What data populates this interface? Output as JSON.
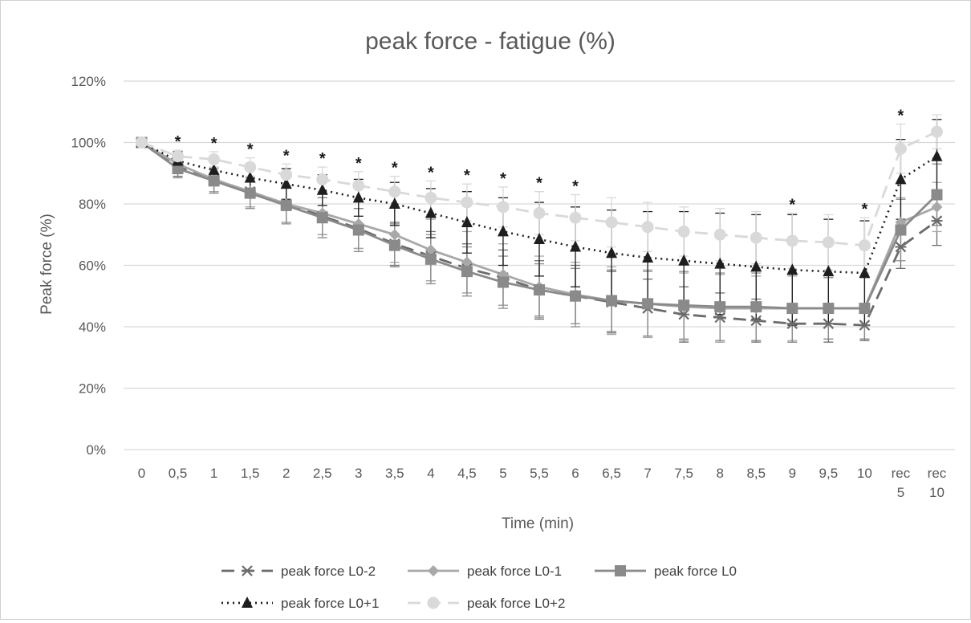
{
  "chart_data": {
    "type": "line",
    "title": "peak force - fatigue (%)",
    "xlabel": "Time (min)",
    "ylabel": "Peak force (%)",
    "ylim": [
      0,
      120
    ],
    "grid": true,
    "legend_position": "bottom",
    "categories": [
      "0",
      "0,5",
      "1",
      "1,5",
      "2",
      "2,5",
      "3",
      "3,5",
      "4",
      "4,5",
      "5",
      "5,5",
      "6",
      "6,5",
      "7",
      "7,5",
      "8",
      "8,5",
      "9",
      "9,5",
      "10",
      "rec\n5",
      "rec\n10"
    ],
    "yticks": [
      "0%",
      "20%",
      "40%",
      "60%",
      "80%",
      "100%",
      "120%"
    ],
    "significance_marker": "*",
    "significance_categories": [
      "0,5",
      "1",
      "1,5",
      "2",
      "2,5",
      "3",
      "3,5",
      "4",
      "4,5",
      "5",
      "5,5",
      "6",
      "9",
      "10",
      "rec\n5"
    ],
    "series": [
      {
        "name": "peak force L0-2",
        "color": "#6b6b6b",
        "marker": "x",
        "line": "dashed",
        "values": [
          100,
          92,
          88,
          84,
          80,
          76,
          72,
          67,
          63,
          59,
          56,
          52,
          50,
          48,
          46,
          44,
          43,
          42,
          41,
          41,
          40.5,
          66,
          74.5
        ],
        "errors": [
          0,
          3,
          4,
          5,
          6,
          6,
          6.5,
          7,
          8,
          8,
          9,
          9.5,
          10,
          10,
          9.5,
          9,
          8,
          7,
          6,
          6,
          5,
          7,
          8
        ]
      },
      {
        "name": "peak force L0-1",
        "color": "#a8a8a8",
        "marker": "diamond",
        "line": "solid",
        "values": [
          100,
          93,
          88,
          84,
          80,
          77,
          73.5,
          70,
          65,
          61,
          57,
          53,
          50.5,
          48.5,
          47.5,
          46.5,
          46,
          46,
          46,
          46,
          46,
          74,
          79
        ],
        "errors": [
          0,
          3,
          4,
          5,
          6,
          7,
          8,
          9,
          10,
          10,
          10,
          10,
          10.5,
          11,
          11,
          11,
          11,
          10.5,
          10.5,
          10,
          10,
          8,
          8
        ]
      },
      {
        "name": "peak force L0",
        "color": "#8a8a8a",
        "marker": "square",
        "line": "solid",
        "values": [
          100,
          91.5,
          87.5,
          83.5,
          79.5,
          75.5,
          71.5,
          66.5,
          62,
          58,
          54.5,
          52,
          50,
          48.5,
          47.5,
          47,
          46.5,
          46.5,
          46,
          46,
          46,
          71.5,
          83
        ],
        "errors": [
          0,
          3,
          4,
          5,
          6,
          6.5,
          7,
          7,
          8,
          8,
          8.5,
          8.5,
          9,
          10,
          10.5,
          11,
          11,
          11,
          11,
          10,
          10,
          10,
          10
        ]
      },
      {
        "name": "peak force L0+1",
        "color": "#1e1e1e",
        "marker": "triangle",
        "line": "dotted",
        "values": [
          100,
          94,
          91,
          88.5,
          86.5,
          84.5,
          82,
          80,
          77,
          74,
          71,
          68.5,
          66,
          64,
          62.5,
          61.5,
          60.5,
          59.5,
          58.5,
          58,
          57.5,
          88,
          95.5
        ],
        "errors": [
          0,
          3,
          4,
          4.5,
          5,
          5,
          6,
          7,
          8,
          10,
          11,
          12,
          13,
          14,
          15,
          16,
          16.5,
          17,
          18,
          17,
          17,
          13,
          12
        ]
      },
      {
        "name": "peak force L0+2",
        "color": "#d9d9d9",
        "marker": "circle",
        "line": "dashed",
        "values": [
          100,
          95.5,
          94.5,
          92,
          89.5,
          88,
          86,
          84,
          82,
          80.5,
          79,
          77,
          75.5,
          74,
          72.5,
          71,
          70,
          69,
          68,
          67.5,
          66.5,
          98,
          103.5
        ],
        "errors": [
          0,
          2,
          2.5,
          3,
          3.5,
          4,
          4.5,
          5,
          5.5,
          6,
          6.5,
          7,
          7.5,
          8,
          8,
          8,
          8.5,
          8.5,
          9,
          9,
          9,
          8,
          5.5
        ]
      }
    ]
  }
}
